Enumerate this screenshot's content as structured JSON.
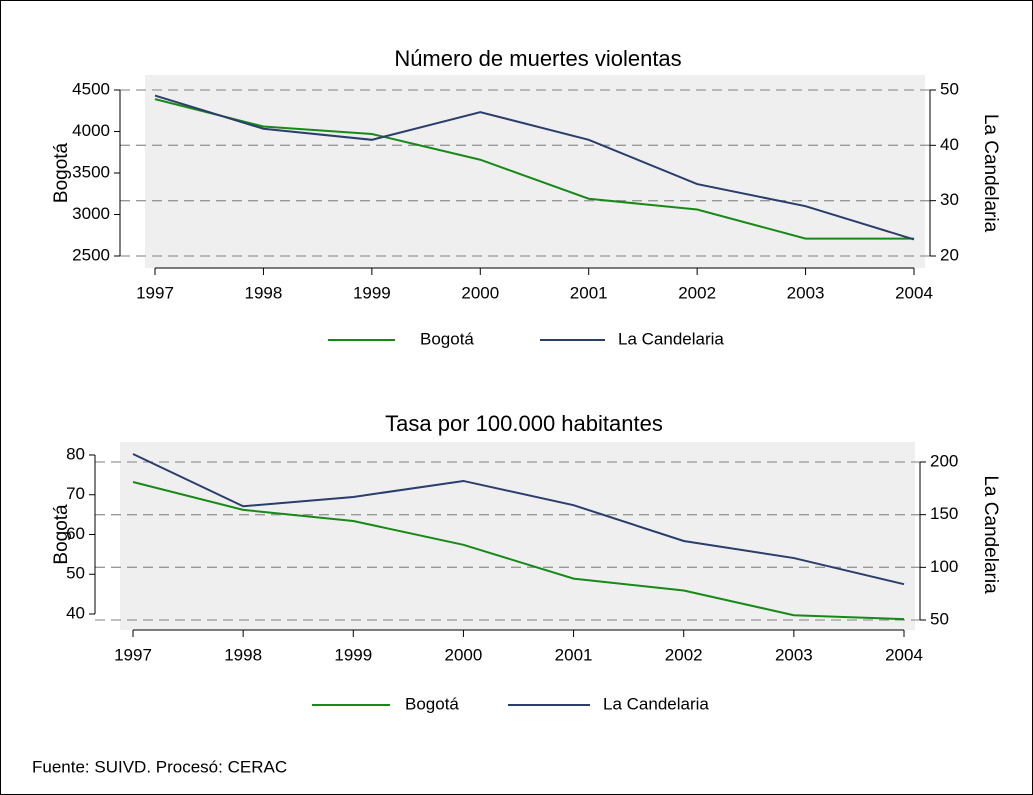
{
  "chart_data": [
    {
      "type": "line",
      "title": "Número de muertes violentas",
      "y_label": "Bogotá",
      "y2_label": "La Candelaria",
      "x": [
        1997,
        1998,
        1999,
        2000,
        2001,
        2002,
        2003,
        2004
      ],
      "xlim": [
        1997,
        2004
      ],
      "xticks": [
        1997,
        1998,
        1999,
        2000,
        2001,
        2002,
        2003,
        2004
      ],
      "ylim": [
        2500,
        4500
      ],
      "yticks": [
        2500,
        3000,
        3500,
        4000,
        4500
      ],
      "y2lim": [
        20,
        50
      ],
      "y2ticks": [
        20,
        30,
        40,
        50
      ],
      "grid": "y2",
      "series": [
        {
          "name": "Bogotá",
          "color": "#168a16",
          "values": [
            4390,
            4060,
            3970,
            3660,
            3190,
            3060,
            2710,
            2710
          ]
        },
        {
          "name": "La Candelaria",
          "color": "#2a3e6c",
          "axis": "y2",
          "values": [
            49,
            43,
            41,
            46,
            41,
            33,
            29,
            23
          ]
        }
      ]
    },
    {
      "type": "line",
      "title": "Tasa por 100.000 habitantes",
      "y_label": "Bogotá",
      "y2_label": "La Candelaria",
      "x": [
        1997,
        1998,
        1999,
        2000,
        2001,
        2002,
        2003,
        2004
      ],
      "xlim": [
        1997,
        2004
      ],
      "xticks": [
        1997,
        1998,
        1999,
        2000,
        2001,
        2002,
        2003,
        2004
      ],
      "ylim": [
        40,
        80
      ],
      "yticks": [
        40,
        50,
        60,
        70,
        80
      ],
      "y2lim": [
        50,
        200
      ],
      "y2ticks": [
        50,
        100,
        150,
        200
      ],
      "grid": "y2",
      "series": [
        {
          "name": "Bogotá",
          "color": "#168a16",
          "values": [
            73.2,
            66.2,
            63.4,
            57.4,
            48.9,
            45.9,
            39.7,
            38.7
          ]
        },
        {
          "name": "La Candelaria",
          "color": "#2a3e6c",
          "axis": "y2",
          "values": [
            207.6,
            158,
            166.8,
            182,
            159,
            125,
            108.8,
            84
          ]
        }
      ]
    }
  ],
  "note": "Fuente: SUIVD. Procesó: CERAC"
}
